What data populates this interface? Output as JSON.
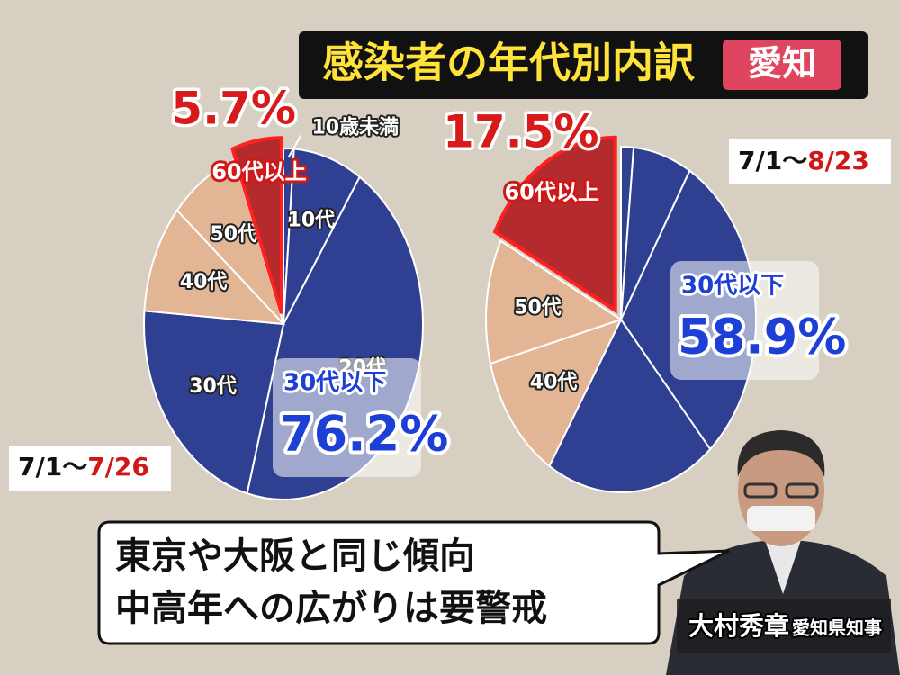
{
  "header": {
    "title": "感染者の年代別内訳",
    "region": "愛知"
  },
  "chart_data": [
    {
      "type": "pie",
      "categories": [
        "10歳未満",
        "10代",
        "20代",
        "30代",
        "40代",
        "50代",
        "60代以上"
      ],
      "values": [
        1.2,
        8,
        45,
        22,
        10,
        8.1,
        5.7
      ],
      "value_labels": [
        null,
        null,
        null,
        null,
        null,
        null,
        "5.7%"
      ],
      "colors": [
        "#2f3f91",
        "#2f3f91",
        "#2f3f91",
        "#2f3f91",
        "#e2b595",
        "#e2b595",
        "#b52a2c"
      ],
      "annotations": [
        "30代以下",
        "76.2%"
      ],
      "date_from": "7/1～",
      "date_to": "7/26"
    },
    {
      "type": "pie",
      "categories": [
        null,
        null,
        null,
        null,
        "40代",
        "50代",
        "60代以上"
      ],
      "values": [
        1.5,
        7,
        30,
        20.4,
        12,
        11.6,
        17.5
      ],
      "value_labels": [
        null,
        null,
        null,
        null,
        null,
        null,
        "17.5%"
      ],
      "colors": [
        "#2f3f91",
        "#2f3f91",
        "#2f3f91",
        "#2f3f91",
        "#e2b595",
        "#e2b595",
        "#b52a2c"
      ],
      "annotations": [
        "30代以下",
        "58.9%"
      ],
      "date_from": "7/1～",
      "date_to": "8/23"
    }
  ],
  "caption": {
    "lines": [
      "東京や大阪と同じ傾向",
      "中高年への広がりは要警戒"
    ]
  },
  "speaker": {
    "name": "大村秀章",
    "role": "愛知県知事"
  }
}
